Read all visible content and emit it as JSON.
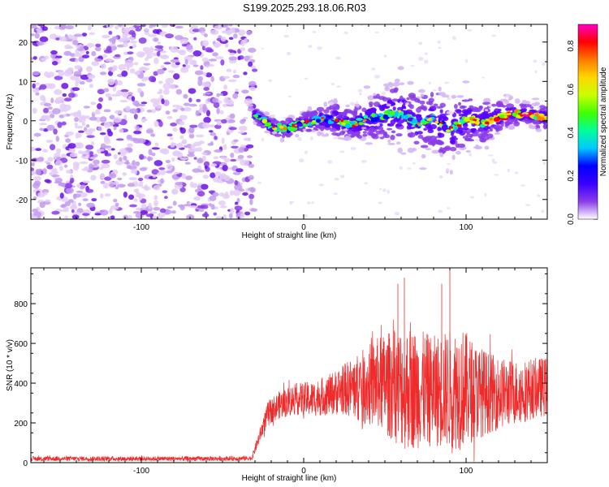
{
  "title": "S199.2025.293.18.06.R03",
  "chart_data": [
    {
      "type": "heatmap",
      "name": "spectrogram",
      "xlabel": "Height of straight line (km)",
      "ylabel": "Frequency (Hz)",
      "xlim": [
        -168,
        150
      ],
      "ylim": [
        -25,
        24.5
      ],
      "xticks": [
        -100,
        0,
        100
      ],
      "xtick_labels": [
        "-100",
        "0",
        "100"
      ],
      "yticks": [
        -20,
        -10,
        0,
        10,
        20
      ],
      "ytick_labels": [
        "-20",
        "-10",
        "0",
        "10",
        "20"
      ],
      "noise_region": {
        "x": [
          -168,
          -30
        ],
        "y": [
          -25,
          24.5
        ]
      },
      "signal_ridge": {
        "x": [
          -30,
          -20,
          -10,
          0,
          10,
          20,
          30,
          40,
          50,
          60,
          70,
          80,
          90,
          100,
          110,
          120,
          130,
          140,
          150
        ],
        "freq": [
          1.5,
          -1.5,
          -2,
          -0.5,
          0.5,
          0,
          -1,
          0.5,
          1.5,
          2,
          -1,
          0.5,
          -2.5,
          0.5,
          -0.5,
          1,
          2,
          1.5,
          0.5
        ],
        "spread_hz": [
          2,
          3,
          3,
          3,
          4,
          6,
          5,
          7,
          9,
          10,
          9,
          10,
          11,
          8,
          7,
          5,
          4,
          4,
          4
        ]
      },
      "colorbar": {
        "label": "Normalized spectral amplitude",
        "range": [
          0,
          0.9
        ],
        "ticks": [
          0,
          0.2,
          0.4,
          0.6,
          0.8
        ],
        "tick_labels": [
          "0.0",
          "0.2",
          "0.4",
          "0.6",
          "0.8"
        ],
        "colormap": [
          "#ffffff",
          "#e6d0f5",
          "#b07fe8",
          "#7a1fe0",
          "#5a00ff",
          "#0000ff",
          "#00c8ff",
          "#00ff9a",
          "#40ff00",
          "#c8ff00",
          "#ffd700",
          "#ff7a00",
          "#ff0000",
          "#ff00c0"
        ]
      }
    },
    {
      "type": "line",
      "name": "snr",
      "xlabel": "Height of straight line (km)",
      "ylabel": "SNR (10 * v/v)",
      "xlim": [
        -168,
        150
      ],
      "ylim": [
        0,
        980
      ],
      "xticks": [
        -100,
        0,
        100
      ],
      "xtick_labels": [
        "-100",
        "0",
        "100"
      ],
      "yticks": [
        0,
        200,
        400,
        600,
        800
      ],
      "ytick_labels": [
        "0",
        "200",
        "400",
        "600",
        "800"
      ],
      "line_color": "#ee2a2a",
      "series": [
        {
          "name": "SNR",
          "envelope": {
            "x": [
              -168,
              -130,
              -100,
              -60,
              -32,
              -22,
              -15,
              -5,
              5,
              15,
              25,
              35,
              45,
              55,
              62,
              70,
              80,
              90,
              96,
              105,
              115,
              125,
              135,
              145,
              150
            ],
            "mean": [
              20,
              20,
              20,
              20,
              22,
              250,
              290,
              320,
              320,
              340,
              370,
              380,
              400,
              390,
              380,
              370,
              360,
              370,
              380,
              360,
              350,
              350,
              360,
              380,
              380
            ],
            "amp": [
              12,
              12,
              12,
              12,
              12,
              60,
              70,
              80,
              90,
              100,
              130,
              180,
              230,
              280,
              320,
              300,
              280,
              300,
              320,
              250,
              200,
              170,
              160,
              150,
              150
            ]
          },
          "peaks": [
            [
              62,
              930
            ],
            [
              90,
              980
            ],
            [
              58,
              900
            ],
            [
              85,
              900
            ]
          ]
        }
      ]
    }
  ]
}
